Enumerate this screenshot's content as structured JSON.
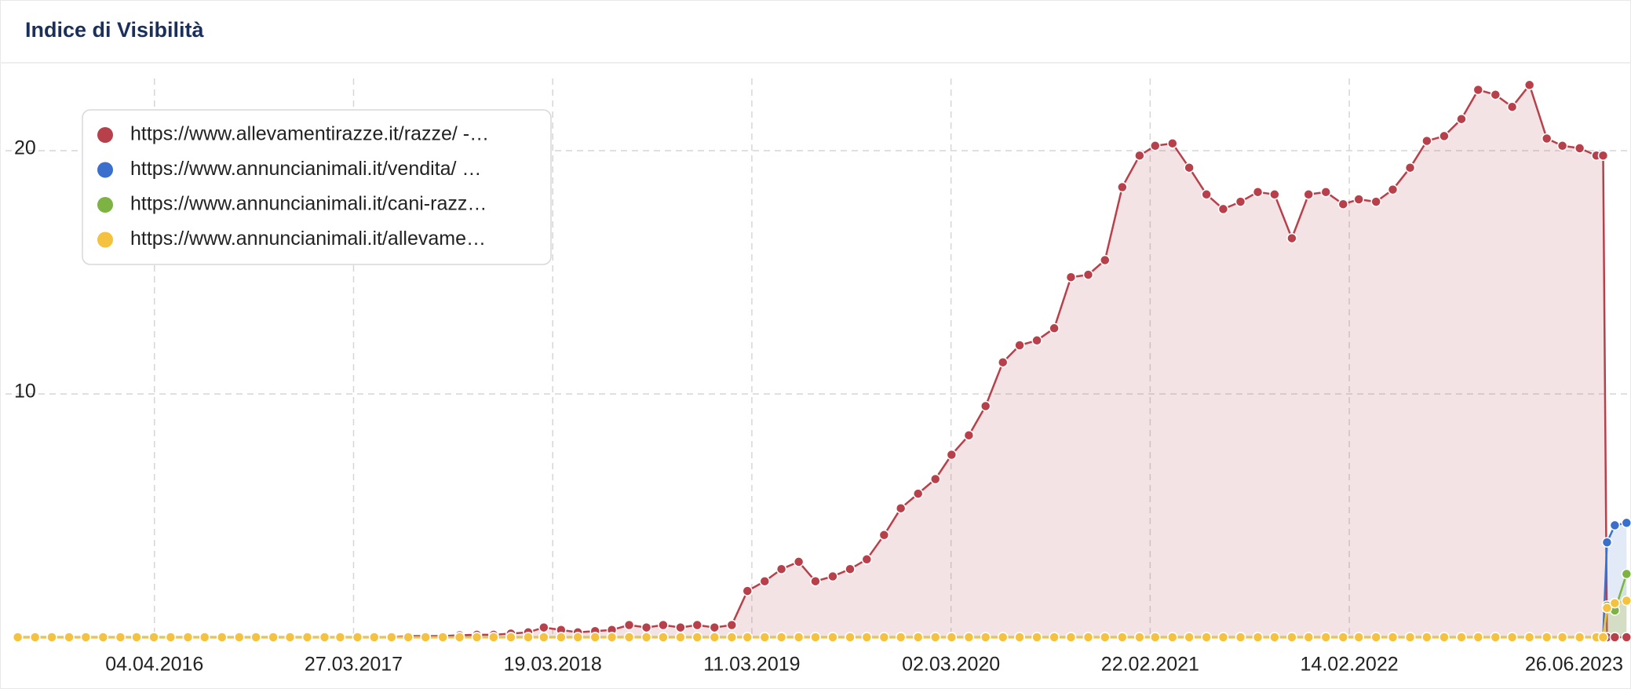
{
  "chart_data": {
    "type": "area",
    "title": "Indice di Visibilità",
    "x": [
      "2015-08-03",
      "2015-09-03",
      "2015-10-03",
      "2015-11-03",
      "2015-12-03",
      "2016-01-03",
      "2016-02-03",
      "2016-03-03",
      "2016-04-03",
      "2016-05-03",
      "2016-06-03",
      "2016-07-03",
      "2016-08-03",
      "2016-09-03",
      "2016-10-03",
      "2016-11-03",
      "2016-12-03",
      "2017-01-03",
      "2017-02-03",
      "2017-03-03",
      "2017-04-03",
      "2017-05-03",
      "2017-06-03",
      "2017-07-03",
      "2017-08-03",
      "2017-09-03",
      "2017-10-03",
      "2017-11-03",
      "2017-12-03",
      "2018-01-03",
      "2018-02-03",
      "2018-03-03",
      "2018-04-03",
      "2018-05-03",
      "2018-06-03",
      "2018-07-03",
      "2018-08-03",
      "2018-09-03",
      "2018-10-03",
      "2018-11-03",
      "2018-12-03",
      "2019-01-03",
      "2019-02-03",
      "2019-03-03",
      "2019-04-03",
      "2019-05-03",
      "2019-06-03",
      "2019-07-03",
      "2019-08-03",
      "2019-09-03",
      "2019-10-03",
      "2019-11-03",
      "2019-12-03",
      "2020-01-03",
      "2020-02-03",
      "2020-03-03",
      "2020-04-03",
      "2020-05-03",
      "2020-06-03",
      "2020-07-03",
      "2020-08-03",
      "2020-09-03",
      "2020-10-03",
      "2020-11-03",
      "2020-12-03",
      "2021-01-03",
      "2021-02-03",
      "2021-03-03",
      "2021-04-03",
      "2021-05-03",
      "2021-06-03",
      "2021-07-03",
      "2021-08-03",
      "2021-09-03",
      "2021-10-03",
      "2021-11-03",
      "2021-12-03",
      "2022-01-03",
      "2022-02-03",
      "2022-03-03",
      "2022-04-03",
      "2022-05-03",
      "2022-06-03",
      "2022-07-03",
      "2022-08-03",
      "2022-09-03",
      "2022-10-03",
      "2022-11-03",
      "2022-12-03",
      "2023-01-03",
      "2023-02-03",
      "2023-03-03",
      "2023-04-03",
      "2023-05-03",
      "2023-05-15",
      "2023-05-22",
      "2023-06-05",
      "2023-06-26"
    ],
    "series": [
      {
        "name": "https://www.allevamentirazze.it/razze/ -…",
        "color": "#b8404b",
        "values": [
          0,
          0,
          0,
          0,
          0,
          0,
          0,
          0,
          0,
          0,
          0,
          0,
          0,
          0,
          0,
          0,
          0,
          0,
          0,
          0,
          0,
          0,
          0,
          0.05,
          0.05,
          0.05,
          0.08,
          0.1,
          0.1,
          0.15,
          0.2,
          0.4,
          0.3,
          0.2,
          0.25,
          0.3,
          0.5,
          0.4,
          0.5,
          0.4,
          0.5,
          0.4,
          0.5,
          1.9,
          2.3,
          2.8,
          3.1,
          2.3,
          2.5,
          2.8,
          3.2,
          4.2,
          5.3,
          5.9,
          6.5,
          7.5,
          8.3,
          9.5,
          11.3,
          12.0,
          12.2,
          12.7,
          14.8,
          14.9,
          15.5,
          18.5,
          19.8,
          20.2,
          20.3,
          19.3,
          18.2,
          17.6,
          17.9,
          18.3,
          18.2,
          16.4,
          18.2,
          18.3,
          17.8,
          18.0,
          17.9,
          18.4,
          19.3,
          20.4,
          20.6,
          21.3,
          22.5,
          22.3,
          21.8,
          22.7,
          20.5,
          20.2,
          20.1,
          19.8,
          19.8,
          0,
          0,
          0
        ]
      },
      {
        "name": "https://www.annuncianimali.it/vendita/ …",
        "color": "#3b6fce",
        "values": [
          0,
          0,
          0,
          0,
          0,
          0,
          0,
          0,
          0,
          0,
          0,
          0,
          0,
          0,
          0,
          0,
          0,
          0,
          0,
          0,
          0,
          0,
          0,
          0,
          0,
          0,
          0,
          0,
          0,
          0,
          0,
          0,
          0,
          0,
          0,
          0,
          0,
          0,
          0,
          0,
          0,
          0,
          0,
          0,
          0,
          0,
          0,
          0,
          0,
          0,
          0,
          0,
          0,
          0,
          0,
          0,
          0,
          0,
          0,
          0,
          0,
          0,
          0,
          0,
          0,
          0,
          0,
          0,
          0,
          0,
          0,
          0,
          0,
          0,
          0,
          0,
          0,
          0,
          0,
          0,
          0,
          0,
          0,
          0,
          0,
          0,
          0,
          0,
          0,
          0,
          0,
          0,
          0,
          0,
          0,
          3.9,
          4.6,
          4.7
        ]
      },
      {
        "name": "https://www.annuncianimali.it/cani-razz…",
        "color": "#7cb342",
        "values": [
          0,
          0,
          0,
          0,
          0,
          0,
          0,
          0,
          0,
          0,
          0,
          0,
          0,
          0,
          0,
          0,
          0,
          0,
          0,
          0,
          0,
          0,
          0,
          0,
          0,
          0,
          0,
          0,
          0,
          0,
          0,
          0,
          0,
          0,
          0,
          0,
          0,
          0,
          0,
          0,
          0,
          0,
          0,
          0,
          0,
          0,
          0,
          0,
          0,
          0,
          0,
          0,
          0,
          0,
          0,
          0,
          0,
          0,
          0,
          0,
          0,
          0,
          0,
          0,
          0,
          0,
          0,
          0,
          0,
          0,
          0,
          0,
          0,
          0,
          0,
          0,
          0,
          0,
          0,
          0,
          0,
          0,
          0,
          0,
          0,
          0,
          0,
          0,
          0,
          0,
          0,
          0,
          0,
          0,
          0,
          1.3,
          1.1,
          2.6
        ]
      },
      {
        "name": "https://www.annuncianimali.it/allevame…",
        "color": "#f4c23e",
        "values": [
          0,
          0,
          0,
          0,
          0,
          0,
          0,
          0,
          0,
          0,
          0,
          0,
          0,
          0,
          0,
          0,
          0,
          0,
          0,
          0,
          0,
          0,
          0,
          0,
          0,
          0,
          0,
          0,
          0,
          0,
          0,
          0,
          0,
          0,
          0,
          0,
          0,
          0,
          0,
          0,
          0,
          0,
          0,
          0,
          0,
          0,
          0,
          0,
          0,
          0,
          0,
          0,
          0,
          0,
          0,
          0,
          0,
          0,
          0,
          0,
          0,
          0,
          0,
          0,
          0,
          0,
          0,
          0,
          0,
          0,
          0,
          0,
          0,
          0,
          0,
          0,
          0,
          0,
          0,
          0,
          0,
          0,
          0,
          0,
          0,
          0,
          0,
          0,
          0,
          0,
          0,
          0,
          0,
          0,
          0,
          1.2,
          1.4,
          1.5
        ]
      }
    ],
    "xlim": [
      "2015-07-12",
      "2023-07-04"
    ],
    "xticks": [
      {
        "value": "2016-04-04",
        "label": "04.04.2016"
      },
      {
        "value": "2017-03-27",
        "label": "27.03.2017"
      },
      {
        "value": "2018-03-19",
        "label": "19.03.2018"
      },
      {
        "value": "2019-03-11",
        "label": "11.03.2019"
      },
      {
        "value": "2020-03-02",
        "label": "02.03.2020"
      },
      {
        "value": "2021-02-22",
        "label": "22.02.2021"
      },
      {
        "value": "2022-02-14",
        "label": "14.02.2022"
      },
      {
        "value": "2023-06-26",
        "label": "26.06.2023"
      }
    ],
    "ylim": [
      0,
      23.5
    ],
    "yticks": [
      10,
      20
    ],
    "grid": true,
    "legend": "top-left"
  }
}
